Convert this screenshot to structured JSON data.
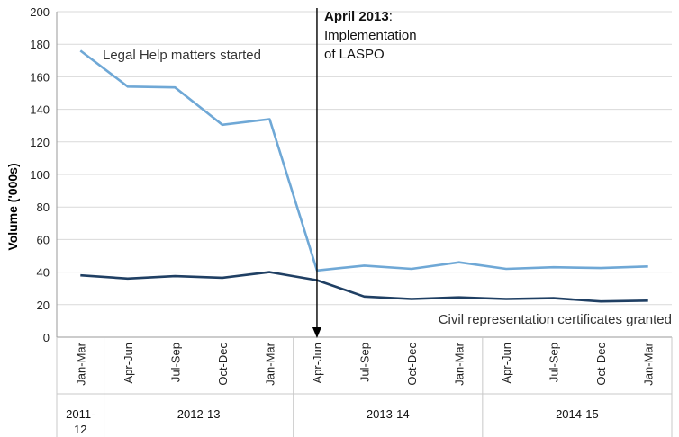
{
  "chart_data": {
    "type": "line",
    "ylabel": "Volume ('000s)",
    "ylim": [
      0,
      200
    ],
    "yticks": [
      0,
      20,
      40,
      60,
      80,
      100,
      120,
      140,
      160,
      180,
      200
    ],
    "grid": true,
    "categories": [
      "Jan-Mar",
      "Apr-Jun",
      "Jul-Sep",
      "Oct-Dec",
      "Jan-Mar",
      "Apr-Jun",
      "Jul-Sep",
      "Oct-Dec",
      "Jan-Mar",
      "Apr-Jun",
      "Jul-Sep",
      "Oct-Dec",
      "Jan-Mar"
    ],
    "groups": [
      {
        "label": "2011-12",
        "start": 0,
        "end": 0
      },
      {
        "label": "2012-13",
        "start": 1,
        "end": 4
      },
      {
        "label": "2013-14",
        "start": 5,
        "end": 8
      },
      {
        "label": "2014-15",
        "start": 9,
        "end": 12
      }
    ],
    "series": [
      {
        "name": "Legal Help matters started",
        "color": "#6fa8d6",
        "values": [
          176,
          154,
          153.5,
          130.5,
          134,
          41,
          44,
          42,
          46,
          42,
          43,
          42.5,
          43.5
        ]
      },
      {
        "name": "Civil representation certificates granted",
        "color": "#1f3f63",
        "values": [
          38,
          36,
          37.5,
          36.5,
          40,
          35,
          25,
          23.5,
          24.5,
          23.5,
          24,
          22,
          22.5
        ]
      }
    ],
    "annotation": {
      "at_index": 5,
      "bold": "April 2013",
      "rest": ":",
      "line2": "Implementation",
      "line3": "of LASPO"
    }
  }
}
